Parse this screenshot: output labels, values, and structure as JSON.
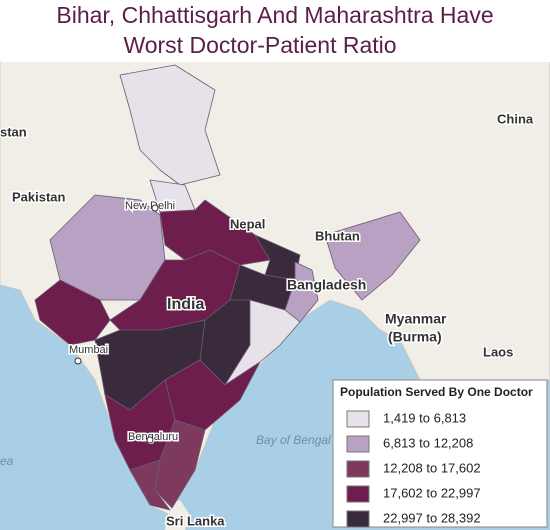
{
  "header": {
    "title_line_1": "Bihar, Chhattisgarh And Maharashtra Have",
    "title_line_2": "Worst Doctor-Patient Ratio"
  },
  "legend": {
    "title": "Population Served By One Doctor",
    "items": [
      {
        "label": "1,419 to 6,813",
        "color": "#e7e1ea"
      },
      {
        "label": "6,813 to 12,208",
        "color": "#b9a1c4"
      },
      {
        "label": "12,208 to 17,602",
        "color": "#7e3a5e"
      },
      {
        "label": "17,602 to 22,997",
        "color": "#6e1e4c"
      },
      {
        "label": "22,997 to 28,392",
        "color": "#3a2b3c"
      }
    ]
  },
  "map_labels": {
    "afghanistan": "stan",
    "pakistan": "Pakistan",
    "china": "China",
    "new_delhi": "New Delhi",
    "nepal": "Nepal",
    "bhutan": "Bhutan",
    "india": "India",
    "bangladesh": "Bangladesh",
    "myanmar_1": "Myanmar",
    "myanmar_2": "(Burma)",
    "mumbai": "Mumbai",
    "laos": "Laos",
    "bengaluru": "Bengaluru",
    "bay_of_bengal": "Bay of Bengal",
    "arabian_sea": "ea",
    "sri_lanka": "Sri Lanka"
  }
}
